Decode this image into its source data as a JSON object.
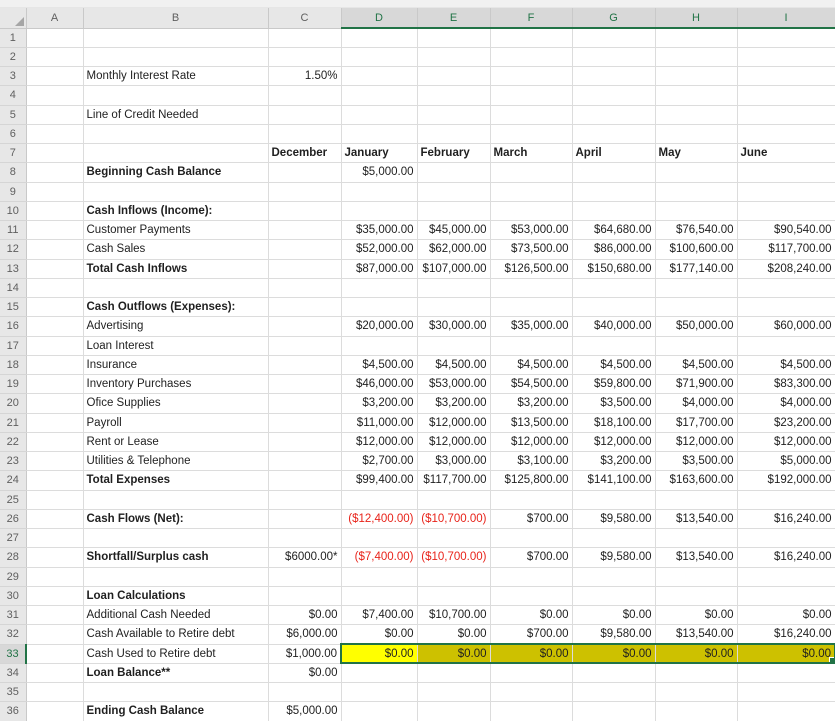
{
  "colors": {
    "selection_green": "#217346",
    "active_fill_yellow": "#FFFF00",
    "selected_fill_yellow": "#CDC100",
    "negative_red": "#E8231A",
    "header_gray": "#E7E7E7",
    "selected_header_gray": "#D8D8D8"
  },
  "flag_legend": {
    "b": "bold",
    "l": "left-align",
    "r": "negative-red",
    "A": "active-cell-yellow",
    "s": "selected-yellow",
    "e": "selection-right-edge"
  },
  "sheet": {
    "col_headers": [
      "A",
      "B",
      "C",
      "D",
      "E",
      "F",
      "G",
      "H",
      "I"
    ],
    "selected_col_headers": [
      "D",
      "E",
      "F",
      "G",
      "H",
      "I"
    ],
    "selected_row_header": "33",
    "selected_range": "D33:I33",
    "active_cell": "D33",
    "rows": [
      {
        "n": "1",
        "cells": []
      },
      {
        "n": "2",
        "cells": []
      },
      {
        "n": "3",
        "cells": [
          {
            "c": "B",
            "t": "Monthly Interest Rate"
          },
          {
            "c": "C",
            "t": "1.50%"
          }
        ]
      },
      {
        "n": "4",
        "cells": []
      },
      {
        "n": "5",
        "cells": [
          {
            "c": "B",
            "t": "Line of Credit Needed"
          }
        ]
      },
      {
        "n": "6",
        "cells": []
      },
      {
        "n": "7",
        "cells": [
          {
            "c": "C",
            "t": "December",
            "f": "bl"
          },
          {
            "c": "D",
            "t": "January",
            "f": "bl"
          },
          {
            "c": "E",
            "t": "February",
            "f": "bl"
          },
          {
            "c": "F",
            "t": "March",
            "f": "bl"
          },
          {
            "c": "G",
            "t": "April",
            "f": "bl"
          },
          {
            "c": "H",
            "t": "May",
            "f": "bl"
          },
          {
            "c": "I",
            "t": "June",
            "f": "bl"
          }
        ]
      },
      {
        "n": "8",
        "cells": [
          {
            "c": "B",
            "t": "Beginning Cash Balance",
            "f": "b"
          },
          {
            "c": "D",
            "t": "$5,000.00"
          }
        ]
      },
      {
        "n": "9",
        "cells": []
      },
      {
        "n": "10",
        "cells": [
          {
            "c": "B",
            "t": "Cash Inflows (Income):",
            "f": "b"
          }
        ]
      },
      {
        "n": "11",
        "cells": [
          {
            "c": "B",
            "t": "Customer Payments"
          },
          {
            "c": "D",
            "t": "$35,000.00"
          },
          {
            "c": "E",
            "t": "$45,000.00"
          },
          {
            "c": "F",
            "t": "$53,000.00"
          },
          {
            "c": "G",
            "t": "$64,680.00"
          },
          {
            "c": "H",
            "t": "$76,540.00"
          },
          {
            "c": "I",
            "t": "$90,540.00"
          }
        ]
      },
      {
        "n": "12",
        "cells": [
          {
            "c": "B",
            "t": "Cash Sales"
          },
          {
            "c": "D",
            "t": "$52,000.00"
          },
          {
            "c": "E",
            "t": "$62,000.00"
          },
          {
            "c": "F",
            "t": "$73,500.00"
          },
          {
            "c": "G",
            "t": "$86,000.00"
          },
          {
            "c": "H",
            "t": "$100,600.00"
          },
          {
            "c": "I",
            "t": "$117,700.00"
          }
        ]
      },
      {
        "n": "13",
        "cells": [
          {
            "c": "B",
            "t": "Total Cash Inflows",
            "f": "b"
          },
          {
            "c": "D",
            "t": "$87,000.00"
          },
          {
            "c": "E",
            "t": "$107,000.00"
          },
          {
            "c": "F",
            "t": "$126,500.00"
          },
          {
            "c": "G",
            "t": "$150,680.00"
          },
          {
            "c": "H",
            "t": "$177,140.00"
          },
          {
            "c": "I",
            "t": "$208,240.00"
          }
        ]
      },
      {
        "n": "14",
        "cells": []
      },
      {
        "n": "15",
        "cells": [
          {
            "c": "B",
            "t": "Cash Outflows (Expenses):",
            "f": "b"
          }
        ]
      },
      {
        "n": "16",
        "cells": [
          {
            "c": "B",
            "t": "Advertising"
          },
          {
            "c": "D",
            "t": "$20,000.00"
          },
          {
            "c": "E",
            "t": "$30,000.00"
          },
          {
            "c": "F",
            "t": "$35,000.00"
          },
          {
            "c": "G",
            "t": "$40,000.00"
          },
          {
            "c": "H",
            "t": "$50,000.00"
          },
          {
            "c": "I",
            "t": "$60,000.00"
          }
        ]
      },
      {
        "n": "17",
        "cells": [
          {
            "c": "B",
            "t": "Loan Interest"
          }
        ]
      },
      {
        "n": "18",
        "cells": [
          {
            "c": "B",
            "t": "Insurance"
          },
          {
            "c": "D",
            "t": "$4,500.00"
          },
          {
            "c": "E",
            "t": "$4,500.00"
          },
          {
            "c": "F",
            "t": "$4,500.00"
          },
          {
            "c": "G",
            "t": "$4,500.00"
          },
          {
            "c": "H",
            "t": "$4,500.00"
          },
          {
            "c": "I",
            "t": "$4,500.00"
          }
        ]
      },
      {
        "n": "19",
        "cells": [
          {
            "c": "B",
            "t": "Inventory Purchases"
          },
          {
            "c": "D",
            "t": "$46,000.00"
          },
          {
            "c": "E",
            "t": "$53,000.00"
          },
          {
            "c": "F",
            "t": "$54,500.00"
          },
          {
            "c": "G",
            "t": "$59,800.00"
          },
          {
            "c": "H",
            "t": "$71,900.00"
          },
          {
            "c": "I",
            "t": "$83,300.00"
          }
        ]
      },
      {
        "n": "20",
        "cells": [
          {
            "c": "B",
            "t": "Ofice Supplies"
          },
          {
            "c": "D",
            "t": "$3,200.00"
          },
          {
            "c": "E",
            "t": "$3,200.00"
          },
          {
            "c": "F",
            "t": "$3,200.00"
          },
          {
            "c": "G",
            "t": "$3,500.00"
          },
          {
            "c": "H",
            "t": "$4,000.00"
          },
          {
            "c": "I",
            "t": "$4,000.00"
          }
        ]
      },
      {
        "n": "21",
        "cells": [
          {
            "c": "B",
            "t": "Payroll"
          },
          {
            "c": "D",
            "t": "$11,000.00"
          },
          {
            "c": "E",
            "t": "$12,000.00"
          },
          {
            "c": "F",
            "t": "$13,500.00"
          },
          {
            "c": "G",
            "t": "$18,100.00"
          },
          {
            "c": "H",
            "t": "$17,700.00"
          },
          {
            "c": "I",
            "t": "$23,200.00"
          }
        ]
      },
      {
        "n": "22",
        "cells": [
          {
            "c": "B",
            "t": "Rent or Lease"
          },
          {
            "c": "D",
            "t": "$12,000.00"
          },
          {
            "c": "E",
            "t": "$12,000.00"
          },
          {
            "c": "F",
            "t": "$12,000.00"
          },
          {
            "c": "G",
            "t": "$12,000.00"
          },
          {
            "c": "H",
            "t": "$12,000.00"
          },
          {
            "c": "I",
            "t": "$12,000.00"
          }
        ]
      },
      {
        "n": "23",
        "cells": [
          {
            "c": "B",
            "t": "Utilities & Telephone"
          },
          {
            "c": "D",
            "t": "$2,700.00"
          },
          {
            "c": "E",
            "t": "$3,000.00"
          },
          {
            "c": "F",
            "t": "$3,100.00"
          },
          {
            "c": "G",
            "t": "$3,200.00"
          },
          {
            "c": "H",
            "t": "$3,500.00"
          },
          {
            "c": "I",
            "t": "$5,000.00"
          }
        ]
      },
      {
        "n": "24",
        "cells": [
          {
            "c": "B",
            "t": "Total Expenses",
            "f": "b"
          },
          {
            "c": "D",
            "t": "$99,400.00"
          },
          {
            "c": "E",
            "t": "$117,700.00"
          },
          {
            "c": "F",
            "t": "$125,800.00"
          },
          {
            "c": "G",
            "t": "$141,100.00"
          },
          {
            "c": "H",
            "t": "$163,600.00"
          },
          {
            "c": "I",
            "t": "$192,000.00"
          }
        ]
      },
      {
        "n": "25",
        "cells": []
      },
      {
        "n": "26",
        "cells": [
          {
            "c": "B",
            "t": "Cash Flows (Net):",
            "f": "b"
          },
          {
            "c": "D",
            "t": "($12,400.00)",
            "f": "r"
          },
          {
            "c": "E",
            "t": "($10,700.00)",
            "f": "r"
          },
          {
            "c": "F",
            "t": "$700.00"
          },
          {
            "c": "G",
            "t": "$9,580.00"
          },
          {
            "c": "H",
            "t": "$13,540.00"
          },
          {
            "c": "I",
            "t": "$16,240.00"
          }
        ]
      },
      {
        "n": "27",
        "cells": []
      },
      {
        "n": "28",
        "cells": [
          {
            "c": "B",
            "t": "Shortfall/Surplus cash",
            "f": "b"
          },
          {
            "c": "C",
            "t": "$6000.00*"
          },
          {
            "c": "D",
            "t": "($7,400.00)",
            "f": "r"
          },
          {
            "c": "E",
            "t": "($10,700.00)",
            "f": "r"
          },
          {
            "c": "F",
            "t": "$700.00"
          },
          {
            "c": "G",
            "t": "$9,580.00"
          },
          {
            "c": "H",
            "t": "$13,540.00"
          },
          {
            "c": "I",
            "t": "$16,240.00"
          }
        ]
      },
      {
        "n": "29",
        "cells": []
      },
      {
        "n": "30",
        "cells": [
          {
            "c": "B",
            "t": "Loan Calculations",
            "f": "b"
          }
        ]
      },
      {
        "n": "31",
        "cells": [
          {
            "c": "B",
            "t": "Additional Cash Needed"
          },
          {
            "c": "C",
            "t": "$0.00"
          },
          {
            "c": "D",
            "t": "$7,400.00"
          },
          {
            "c": "E",
            "t": "$10,700.00"
          },
          {
            "c": "F",
            "t": "$0.00"
          },
          {
            "c": "G",
            "t": "$0.00"
          },
          {
            "c": "H",
            "t": "$0.00"
          },
          {
            "c": "I",
            "t": "$0.00"
          }
        ]
      },
      {
        "n": "32",
        "cells": [
          {
            "c": "B",
            "t": "Cash Available to Retire debt"
          },
          {
            "c": "C",
            "t": "$6,000.00"
          },
          {
            "c": "D",
            "t": "$0.00"
          },
          {
            "c": "E",
            "t": "$0.00"
          },
          {
            "c": "F",
            "t": "$700.00"
          },
          {
            "c": "G",
            "t": "$9,580.00"
          },
          {
            "c": "H",
            "t": "$13,540.00"
          },
          {
            "c": "I",
            "t": "$16,240.00"
          }
        ]
      },
      {
        "n": "33",
        "cells": [
          {
            "c": "B",
            "t": "Cash Used to Retire debt"
          },
          {
            "c": "C",
            "t": "$1,000.00"
          },
          {
            "c": "D",
            "t": "$0.00",
            "f": "A"
          },
          {
            "c": "E",
            "t": "$0.00",
            "f": "s"
          },
          {
            "c": "F",
            "t": "$0.00",
            "f": "s"
          },
          {
            "c": "G",
            "t": "$0.00",
            "f": "s"
          },
          {
            "c": "H",
            "t": "$0.00",
            "f": "s"
          },
          {
            "c": "I",
            "t": "$0.00",
            "f": "se"
          }
        ]
      },
      {
        "n": "34",
        "cells": [
          {
            "c": "B",
            "t": "Loan Balance**",
            "f": "b"
          },
          {
            "c": "C",
            "t": "$0.00"
          }
        ]
      },
      {
        "n": "35",
        "cells": []
      },
      {
        "n": "36",
        "cells": [
          {
            "c": "B",
            "t": "Ending Cash Balance",
            "f": "b"
          },
          {
            "c": "C",
            "t": "$5,000.00"
          }
        ]
      }
    ]
  }
}
